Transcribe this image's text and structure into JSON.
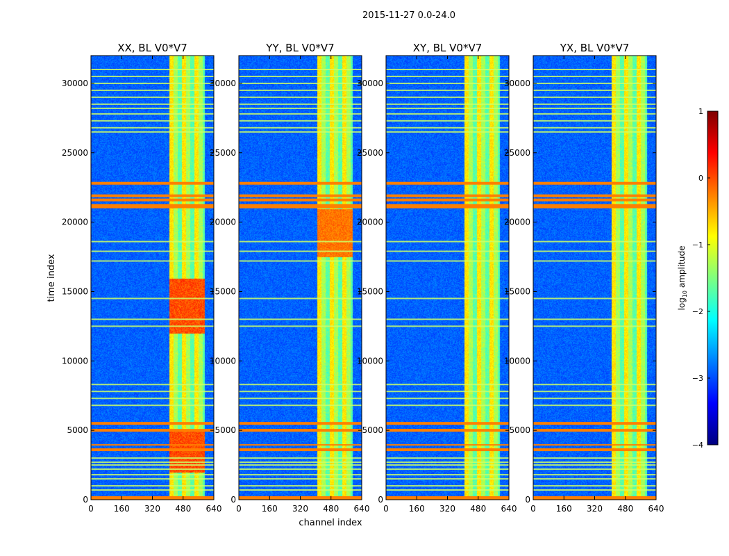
{
  "chart_data": {
    "type": "heatmap",
    "suptitle": "2015-11-27 0.0-24.0",
    "xlabel": "channel index",
    "ylabel": "time index",
    "xlim": [
      0,
      640
    ],
    "ylim": [
      0,
      32000
    ],
    "x_ticks": [
      0,
      160,
      320,
      480,
      640
    ],
    "y_ticks": [
      0,
      5000,
      10000,
      15000,
      20000,
      25000,
      30000
    ],
    "panels": [
      {
        "title": "XX, BL V0*V7",
        "pol": "XX"
      },
      {
        "title": "YY, BL V0*V7",
        "pol": "YY"
      },
      {
        "title": "XY, BL V0*V7",
        "pol": "XY"
      },
      {
        "title": "YX, BL V0*V7",
        "pol": "YX"
      }
    ],
    "colorbar": {
      "label": "log10 amplitude",
      "label_main": "log",
      "label_sub": "10",
      "label_rest": " amplitude",
      "range": [
        -4,
        1
      ],
      "ticks": [
        1,
        0,
        -1,
        -2,
        -3,
        -4
      ],
      "tick_labels": [
        "1",
        "0",
        "−1",
        "−2",
        "−3",
        "−4"
      ],
      "colormap": "jet",
      "colors": [
        "#00007f",
        "#0000ff",
        "#007fff",
        "#00ffff",
        "#7fff7f",
        "#ffff00",
        "#ff7f00",
        "#ff0000",
        "#7f0000"
      ]
    },
    "features": {
      "rfi_channel_range": [
        405,
        590
      ],
      "strong_time_bands": [
        [
          21000,
          21300
        ],
        [
          21500,
          21700
        ],
        [
          21800,
          22000
        ],
        [
          22700,
          22900
        ],
        [
          5400,
          5600
        ],
        [
          4900,
          5100
        ],
        [
          3900,
          4000
        ],
        [
          3500,
          3700
        ],
        [
          0,
          250
        ]
      ],
      "flagged_time_lines": [
        31000,
        30500,
        30000,
        29500,
        29000,
        28500,
        28200,
        27800,
        27300,
        26800,
        26500,
        18600,
        17900,
        17200,
        14500,
        13000,
        12500,
        8300,
        7800,
        7300,
        6800,
        3000,
        2700,
        2500,
        2200,
        1800,
        1500,
        1000,
        700
      ]
    }
  }
}
